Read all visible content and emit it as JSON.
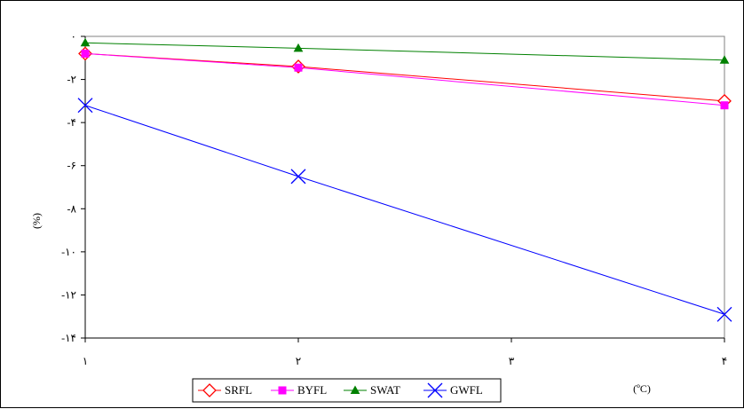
{
  "chart_data": {
    "type": "line",
    "x": [
      1,
      2,
      4
    ],
    "x_ticks": [
      1,
      2,
      3,
      4
    ],
    "x_tick_labels": [
      "١",
      "٢",
      "٣",
      "۴"
    ],
    "xlim": [
      1,
      4
    ],
    "ylim": [
      -14,
      0
    ],
    "y_ticks": [
      0,
      -2,
      -4,
      -6,
      -8,
      -10,
      -12,
      -14
    ],
    "y_tick_labels": [
      "٠",
      "-٢",
      "-۴",
      "-۶",
      "-٨",
      "-١٠",
      "-١٢",
      "-١۴"
    ],
    "ylabel": "(%)",
    "xlabel": "(ºC)",
    "grid": false,
    "legend_position": "bottom",
    "series": [
      {
        "name": "SRFL",
        "values": [
          -0.8,
          -1.4,
          -3.0
        ],
        "color": "#ff0000",
        "marker": "diamond-open"
      },
      {
        "name": "BYFL",
        "values": [
          -0.8,
          -1.45,
          -3.2
        ],
        "color": "#ff00ff",
        "marker": "square"
      },
      {
        "name": "SWAT",
        "values": [
          -0.3,
          -0.55,
          -1.1
        ],
        "color": "#008000",
        "marker": "triangle"
      },
      {
        "name": "GWFL",
        "values": [
          -3.2,
          -6.5,
          -12.9
        ],
        "color": "#0000ff",
        "marker": "x"
      }
    ]
  }
}
